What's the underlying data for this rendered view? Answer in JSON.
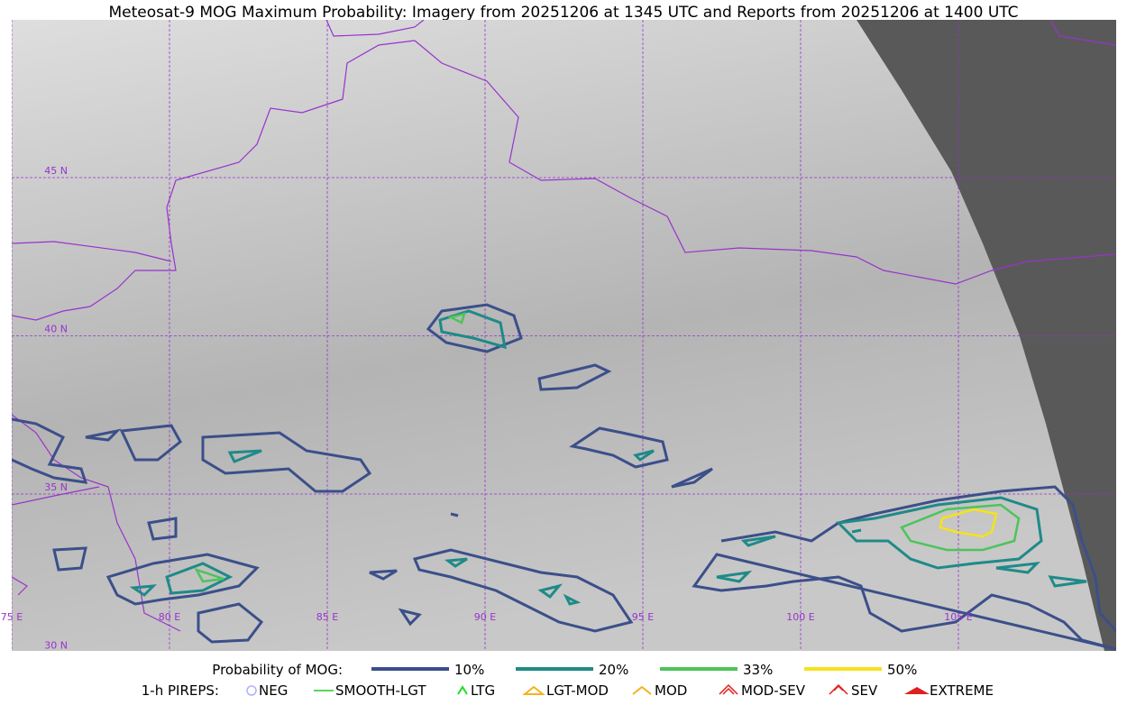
{
  "title": "Meteosat-9 MOG Maximum Probability: Imagery from 20251206 at 1345 UTC and Reports from 20251206 at 1400 UTC",
  "map": {
    "lat_labels": [
      "45 N",
      "40 N",
      "35 N",
      "30 N"
    ],
    "lon_labels": [
      "75 E",
      "80 E",
      "85 E",
      "90 E",
      "95 E",
      "100 E",
      "105 E"
    ]
  },
  "legend": {
    "probability_label": "Probability of MOG:",
    "probability_items": [
      {
        "label": "10%",
        "color": "#3b4f8a"
      },
      {
        "label": "20%",
        "color": "#1f8a88"
      },
      {
        "label": "33%",
        "color": "#4cc45a"
      },
      {
        "label": "50%",
        "color": "#f5e31a"
      }
    ],
    "pireps_label": "1-h PIREPS:",
    "pireps_items": [
      "NEG",
      "SMOOTH-LGT",
      "LTG",
      "LGT-MOD",
      "MOD",
      "MOD-SEV",
      "SEV",
      "EXTREME"
    ]
  }
}
